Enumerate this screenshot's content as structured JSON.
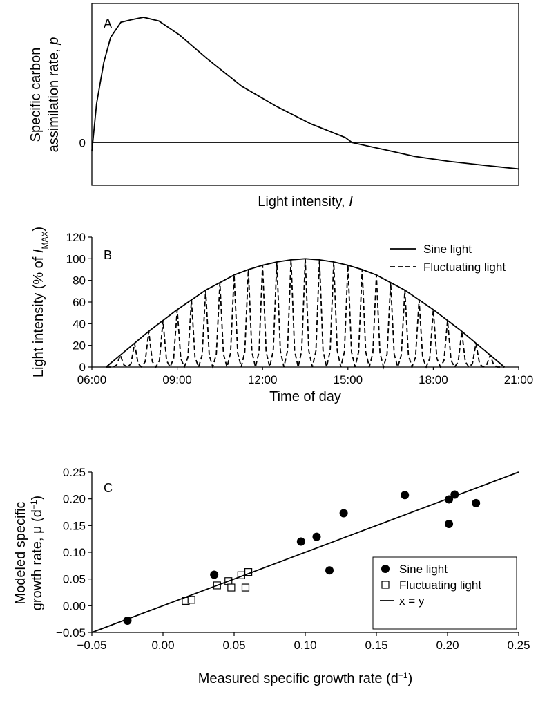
{
  "chart_data": [
    {
      "type": "line",
      "panel_label": "A",
      "ylabel": [
        "Specific carbon",
        "assimilation rate, ",
        "p"
      ],
      "xlabel": [
        "Light intensity, ",
        "I"
      ],
      "xlim": [
        0,
        1
      ],
      "ylim": [
        -0.34,
        1.11
      ],
      "yticks": [
        0
      ],
      "grid": true,
      "frame": true,
      "series": [
        {
          "color": "#000000",
          "linestyle": "solid",
          "x": [
            0,
            0.011,
            0.028,
            0.044,
            0.068,
            0.092,
            0.121,
            0.157,
            0.205,
            0.27,
            0.351,
            0.432,
            0.513,
            0.594,
            0.61,
            0.691,
            0.756,
            0.837,
            0.917,
            1
          ],
          "values": [
            -0.07,
            0.31,
            0.64,
            0.84,
            0.96,
            0.98,
            1.0,
            0.97,
            0.86,
            0.67,
            0.45,
            0.29,
            0.15,
            0.04,
            0,
            -0.06,
            -0.11,
            -0.15,
            -0.18,
            -0.21
          ]
        }
      ]
    },
    {
      "type": "line",
      "panel_label": "B",
      "ylabel": [
        "Light intensity (% of ",
        "I",
        "MAX",
        ")"
      ],
      "xlabel": "Time of day",
      "xlim": [
        6,
        21
      ],
      "ylim": [
        0,
        120
      ],
      "xticks": [
        {
          "value": 6,
          "label": "06:00"
        },
        {
          "value": 9,
          "label": "09:00"
        },
        {
          "value": 12,
          "label": "12:00"
        },
        {
          "value": 15,
          "label": "15:00"
        },
        {
          "value": 18,
          "label": "18:00"
        },
        {
          "value": 21,
          "label": "21:00"
        }
      ],
      "yticks": [
        0,
        20,
        40,
        60,
        80,
        100,
        120
      ],
      "grid": false,
      "frame": false,
      "legend": "upper right",
      "series": [
        {
          "name": "Sine light",
          "color": "#000000",
          "linestyle": "solid",
          "x": [
            6.5,
            7,
            7.5,
            8,
            8.5,
            9,
            9.5,
            10,
            10.5,
            11,
            11.5,
            12,
            12.5,
            13,
            13.5,
            14,
            14.5,
            15,
            15.5,
            16,
            16.5,
            17,
            17.5,
            18,
            18.5,
            19,
            19.5,
            20,
            20.5
          ],
          "values": [
            0,
            11,
            22,
            33,
            43,
            53,
            62,
            71,
            78,
            85,
            90,
            94,
            97,
            99,
            100,
            99,
            97,
            94,
            90,
            85,
            78,
            71,
            62,
            53,
            43,
            33,
            22,
            11,
            0
          ]
        },
        {
          "name": "Fluctuating light",
          "color": "#000000",
          "linestyle": "dashed",
          "x": [
            6.5,
            6.625,
            6.75,
            6.875,
            7,
            7.125,
            7.25,
            7.375,
            7.5,
            7.625,
            7.75,
            7.875,
            8,
            8.125,
            8.25,
            8.375,
            8.5,
            8.625,
            8.75,
            8.875,
            9,
            9.125,
            9.25,
            9.375,
            9.5,
            9.625,
            9.75,
            9.875,
            10,
            10.125,
            10.25,
            10.375,
            10.5,
            10.625,
            10.75,
            10.875,
            11,
            11.125,
            11.25,
            11.375,
            11.5,
            11.625,
            11.75,
            11.875,
            12,
            12.125,
            12.25,
            12.375,
            12.5,
            12.625,
            12.75,
            12.875,
            13,
            13.125,
            13.25,
            13.375,
            13.5,
            13.625,
            13.75,
            13.875,
            14,
            14.125,
            14.25,
            14.375,
            14.5,
            14.625,
            14.75,
            14.875,
            15,
            15.125,
            15.25,
            15.375,
            15.5,
            15.625,
            15.75,
            15.875,
            16,
            16.125,
            16.25,
            16.375,
            16.5,
            16.625,
            16.75,
            16.875,
            17,
            17.125,
            17.25,
            17.375,
            17.5,
            17.625,
            17.75,
            17.875,
            18,
            18.125,
            18.25,
            18.375,
            18.5,
            18.625,
            18.75,
            18.875,
            19,
            19.125,
            19.25,
            19.375,
            19.5,
            19.625,
            19.75,
            19.875,
            20,
            20.125,
            20.25,
            20.375,
            20.5
          ],
          "values": [
            0,
            0,
            0,
            2,
            11,
            2,
            0,
            3,
            22,
            3,
            0,
            5,
            33,
            5,
            0,
            6,
            43,
            6,
            0,
            8,
            53,
            8,
            0,
            9,
            62,
            9,
            0,
            11,
            71,
            11,
            0,
            12,
            78,
            12,
            0,
            13,
            85,
            13,
            0,
            14,
            90,
            14,
            0,
            14,
            94,
            14,
            0,
            15,
            97,
            15,
            0,
            15,
            99,
            15,
            0,
            15,
            100,
            15,
            0,
            15,
            99,
            15,
            0,
            15,
            97,
            15,
            0,
            14,
            94,
            14,
            0,
            14,
            90,
            14,
            0,
            13,
            85,
            13,
            0,
            12,
            78,
            12,
            0,
            11,
            71,
            11,
            0,
            9,
            62,
            9,
            0,
            8,
            53,
            8,
            0,
            6,
            43,
            6,
            0,
            5,
            33,
            5,
            0,
            3,
            22,
            3,
            0,
            2,
            11,
            2,
            0,
            0,
            0
          ]
        }
      ]
    },
    {
      "type": "scatter",
      "panel_label": "C",
      "ylabel": [
        "Modeled specific",
        "growth rate, μ (d",
        "−1",
        ")"
      ],
      "xlabel": [
        "Measured specific growth rate (d",
        "−1",
        ")"
      ],
      "xlim": [
        -0.05,
        0.25
      ],
      "ylim": [
        -0.05,
        0.25
      ],
      "xticks": [
        {
          "value": -0.05,
          "label": "−0.05"
        },
        {
          "value": 0,
          "label": "0.00"
        },
        0.05,
        {
          "value": 0.1,
          "label": "0.10"
        },
        0.15,
        {
          "value": 0.2,
          "label": "0.20"
        },
        0.25
      ],
      "yticks": [
        {
          "value": -0.05,
          "label": "−0.05"
        },
        {
          "value": 0,
          "label": "0.00"
        },
        0.05,
        {
          "value": 0.1,
          "label": "0.10"
        },
        0.15,
        {
          "value": 0.2,
          "label": "0.20"
        },
        0.25
      ],
      "grid": false,
      "frame": false,
      "legend": "lower right",
      "series": [
        {
          "name": "Sine light",
          "color": "#000000",
          "marker": "circle",
          "x": [
            -0.025,
            0.036,
            0.097,
            0.108,
            0.117,
            0.127,
            0.17,
            0.201,
            0.201,
            0.205,
            0.22
          ],
          "values": [
            -0.028,
            0.058,
            0.12,
            0.129,
            0.066,
            0.173,
            0.207,
            0.199,
            0.153,
            0.208,
            0.192
          ]
        },
        {
          "name": "Fluctuating light",
          "color": "#000000",
          "marker": "square",
          "x": [
            0.016,
            0.02,
            0.038,
            0.046,
            0.048,
            0.055,
            0.058,
            0.06
          ],
          "values": [
            0.009,
            0.011,
            0.038,
            0.046,
            0.034,
            0.057,
            0.034,
            0.063
          ]
        },
        {
          "name": "x = y",
          "color": "#000000",
          "linestyle": "solid",
          "x": [
            -0.05,
            0.25
          ],
          "values": [
            -0.05,
            0.25
          ]
        }
      ]
    }
  ]
}
